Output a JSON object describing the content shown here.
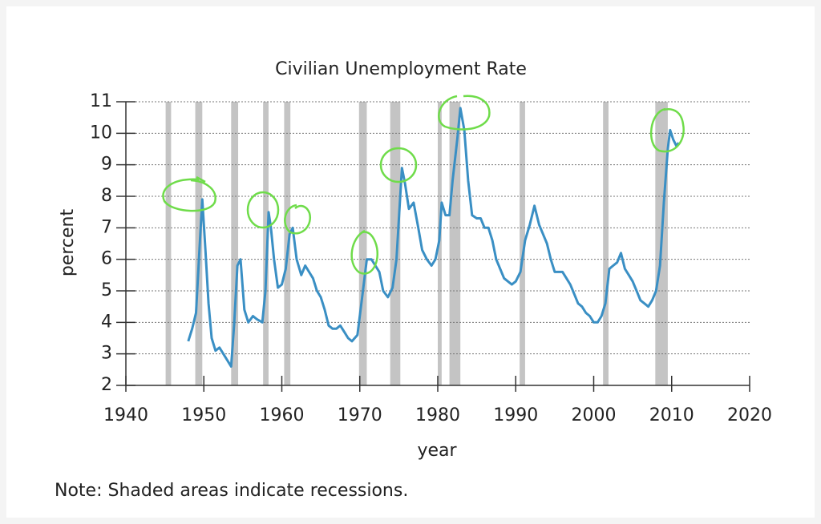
{
  "chart_data": {
    "type": "line",
    "title": "Civilian Unemployment Rate",
    "ylabel": "percent",
    "xlabel": "year",
    "note": "Note: Shaded areas indicate recessions.",
    "xlim": [
      1940,
      2020
    ],
    "xticks": [
      1940,
      1950,
      1960,
      1970,
      1980,
      1990,
      2000,
      2010,
      2020
    ],
    "ylim": [
      2,
      11
    ],
    "yticks": [
      2,
      3,
      4,
      5,
      6,
      7,
      8,
      9,
      10,
      11
    ],
    "grid": true,
    "recession_color": "#c4c4c4",
    "recessions": [
      [
        1945.1,
        1945.8
      ],
      [
        1948.9,
        1949.8
      ],
      [
        1953.5,
        1954.4
      ],
      [
        1957.6,
        1958.3
      ],
      [
        1960.3,
        1961.1
      ],
      [
        1969.9,
        1970.9
      ],
      [
        1973.9,
        1975.2
      ],
      [
        1980.0,
        1980.5
      ],
      [
        1981.5,
        1982.9
      ],
      [
        1990.5,
        1991.2
      ],
      [
        2001.2,
        2001.9
      ],
      [
        2007.9,
        2009.5
      ]
    ],
    "series": [
      {
        "name": "unemployment rate",
        "color": "#3a8fc4",
        "x": [
          1948.0,
          1948.5,
          1949.0,
          1949.5,
          1949.8,
          1950.2,
          1950.6,
          1951.0,
          1951.5,
          1952.0,
          1952.5,
          1953.0,
          1953.5,
          1953.9,
          1954.3,
          1954.7,
          1955.2,
          1955.7,
          1956.3,
          1956.8,
          1957.5,
          1957.9,
          1958.3,
          1958.6,
          1959.0,
          1959.5,
          1960.0,
          1960.5,
          1961.0,
          1961.4,
          1961.9,
          1962.5,
          1963.0,
          1963.5,
          1964.0,
          1964.5,
          1965.0,
          1965.5,
          1966.0,
          1966.5,
          1967.0,
          1967.5,
          1968.0,
          1968.5,
          1969.0,
          1969.7,
          1970.3,
          1970.9,
          1971.5,
          1972.0,
          1972.5,
          1973.0,
          1973.6,
          1974.2,
          1974.7,
          1975.4,
          1975.8,
          1976.3,
          1976.9,
          1977.5,
          1978.0,
          1978.6,
          1979.2,
          1979.7,
          1980.2,
          1980.5,
          1981.0,
          1981.5,
          1981.9,
          1982.5,
          1982.9,
          1983.4,
          1983.9,
          1984.4,
          1985.0,
          1985.5,
          1986.0,
          1986.5,
          1987.0,
          1987.5,
          1988.0,
          1988.5,
          1989.0,
          1989.5,
          1990.0,
          1990.6,
          1991.2,
          1991.8,
          1992.4,
          1993.0,
          1993.5,
          1994.0,
          1994.5,
          1995.0,
          1995.5,
          1996.0,
          1996.5,
          1997.0,
          1997.5,
          1998.0,
          1998.5,
          1999.0,
          1999.5,
          2000.0,
          2000.5,
          2001.0,
          2001.5,
          2002.0,
          2002.5,
          2003.0,
          2003.5,
          2004.0,
          2004.5,
          2005.0,
          2005.5,
          2006.0,
          2006.5,
          2007.0,
          2007.5,
          2008.0,
          2008.5,
          2009.0,
          2009.5,
          2009.8,
          2010.2,
          2010.6,
          2010.9
        ],
        "values": [
          3.4,
          3.8,
          4.3,
          6.6,
          7.9,
          6.3,
          4.6,
          3.5,
          3.1,
          3.2,
          3.0,
          2.8,
          2.6,
          4.0,
          5.8,
          6.0,
          4.4,
          4.0,
          4.2,
          4.1,
          4.0,
          5.0,
          7.5,
          7.0,
          6.0,
          5.1,
          5.2,
          5.7,
          6.8,
          7.0,
          6.0,
          5.5,
          5.8,
          5.6,
          5.4,
          5.0,
          4.8,
          4.4,
          3.9,
          3.8,
          3.8,
          3.9,
          3.7,
          3.5,
          3.4,
          3.6,
          4.8,
          6.0,
          6.0,
          5.8,
          5.6,
          5.0,
          4.8,
          5.1,
          6.0,
          8.9,
          8.4,
          7.6,
          7.8,
          7.0,
          6.3,
          6.0,
          5.8,
          6.0,
          6.6,
          7.8,
          7.4,
          7.4,
          8.5,
          9.8,
          10.8,
          10.1,
          8.5,
          7.4,
          7.3,
          7.3,
          7.0,
          7.0,
          6.6,
          6.0,
          5.7,
          5.4,
          5.3,
          5.2,
          5.3,
          5.6,
          6.6,
          7.1,
          7.7,
          7.1,
          6.8,
          6.5,
          6.0,
          5.6,
          5.6,
          5.6,
          5.4,
          5.2,
          4.9,
          4.6,
          4.5,
          4.3,
          4.2,
          4.0,
          4.0,
          4.2,
          4.6,
          5.7,
          5.8,
          5.9,
          6.2,
          5.7,
          5.5,
          5.3,
          5.0,
          4.7,
          4.6,
          4.5,
          4.7,
          5.0,
          5.8,
          7.8,
          9.5,
          10.1,
          9.8,
          9.6,
          9.7
        ]
      }
    ]
  }
}
